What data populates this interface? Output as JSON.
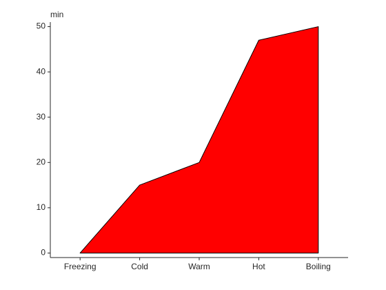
{
  "chart_data": {
    "type": "area",
    "y_label": "min",
    "categories": [
      "Freezing",
      "Cold",
      "Warm",
      "Hot",
      "Boiling"
    ],
    "values": [
      0,
      15,
      20,
      47,
      50
    ],
    "color": "#ff0000",
    "ylim": [
      -1,
      51
    ],
    "yticks": [
      0,
      10,
      20,
      30,
      40,
      50
    ],
    "grid": false
  }
}
